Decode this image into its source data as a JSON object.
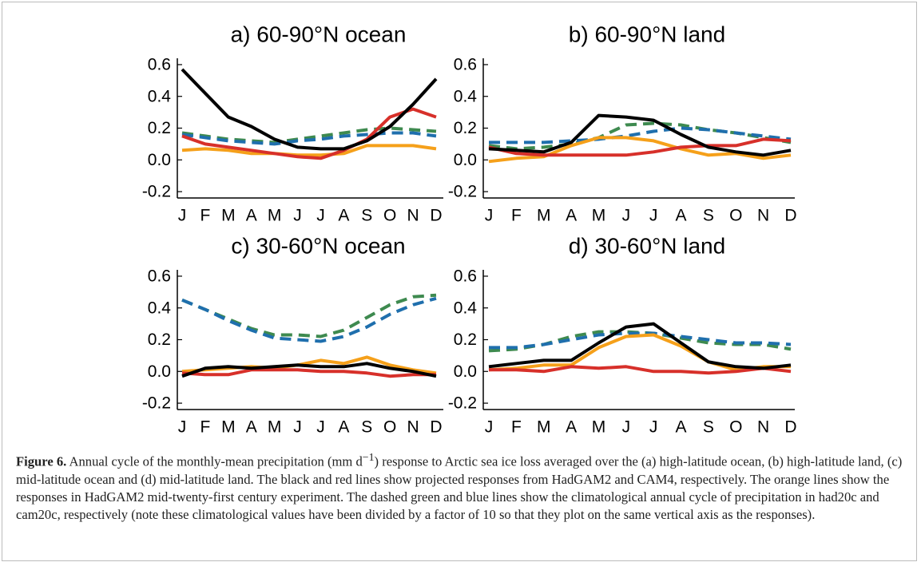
{
  "chart_data": [
    {
      "type": "line",
      "title": "a) 60-90°N ocean",
      "categories": [
        "J",
        "F",
        "M",
        "A",
        "M",
        "J",
        "J",
        "A",
        "S",
        "O",
        "N",
        "D"
      ],
      "ylim": [
        -0.24,
        0.64
      ],
      "yticks": [
        0.6,
        0.4,
        0.2,
        {
          "value": 0,
          "label": "0.0"
        },
        -0.2
      ],
      "series": [
        {
          "color": "#3e8a4f",
          "dashed": true,
          "values": [
            0.17,
            0.15,
            0.13,
            0.12,
            0.11,
            0.13,
            0.15,
            0.17,
            0.19,
            0.2,
            0.19,
            0.18
          ]
        },
        {
          "color": "#1f6fad",
          "dashed": true,
          "values": [
            0.16,
            0.14,
            0.12,
            0.11,
            0.1,
            0.12,
            0.13,
            0.15,
            0.16,
            0.17,
            0.17,
            0.15
          ]
        },
        {
          "color": "#f5a01a",
          "dashed": false,
          "values": [
            0.06,
            0.07,
            0.06,
            0.04,
            0.04,
            0.03,
            0.03,
            0.04,
            0.09,
            0.09,
            0.09,
            0.07
          ]
        },
        {
          "color": "#d7302a",
          "dashed": false,
          "values": [
            0.15,
            0.1,
            0.08,
            0.06,
            0.04,
            0.02,
            0.01,
            0.06,
            0.13,
            0.27,
            0.32,
            0.27
          ]
        },
        {
          "color": "#000000",
          "dashed": false,
          "values": [
            0.57,
            0.42,
            0.27,
            0.21,
            0.13,
            0.08,
            0.07,
            0.07,
            0.12,
            0.21,
            0.35,
            0.51
          ]
        }
      ]
    },
    {
      "type": "line",
      "title": "b) 60-90°N land",
      "categories": [
        "J",
        "F",
        "M",
        "A",
        "M",
        "J",
        "J",
        "A",
        "S",
        "O",
        "N",
        "D"
      ],
      "ylim": [
        -0.24,
        0.64
      ],
      "yticks": [
        0.6,
        0.4,
        0.2,
        {
          "value": 0,
          "label": "0.0"
        },
        -0.2
      ],
      "series": [
        {
          "color": "#3e8a4f",
          "dashed": true,
          "values": [
            0.09,
            0.07,
            0.08,
            0.1,
            0.14,
            0.22,
            0.23,
            0.22,
            0.19,
            0.17,
            0.14,
            0.11
          ]
        },
        {
          "color": "#1f6fad",
          "dashed": true,
          "values": [
            0.11,
            0.11,
            0.11,
            0.12,
            0.13,
            0.15,
            0.18,
            0.2,
            0.19,
            0.17,
            0.15,
            0.13
          ]
        },
        {
          "color": "#f5a01a",
          "dashed": false,
          "values": [
            -0.01,
            0.01,
            0.02,
            0.09,
            0.14,
            0.14,
            0.12,
            0.07,
            0.03,
            0.04,
            0.01,
            0.03
          ]
        },
        {
          "color": "#d7302a",
          "dashed": false,
          "values": [
            0.08,
            0.04,
            0.03,
            0.03,
            0.03,
            0.03,
            0.05,
            0.08,
            0.09,
            0.09,
            0.13,
            0.12
          ]
        },
        {
          "color": "#000000",
          "dashed": false,
          "values": [
            0.07,
            0.06,
            0.05,
            0.11,
            0.28,
            0.27,
            0.25,
            0.16,
            0.08,
            0.05,
            0.03,
            0.06
          ]
        }
      ]
    },
    {
      "type": "line",
      "title": "c) 30-60°N ocean",
      "categories": [
        "J",
        "F",
        "M",
        "A",
        "M",
        "J",
        "J",
        "A",
        "S",
        "O",
        "N",
        "D"
      ],
      "ylim": [
        -0.24,
        0.64
      ],
      "yticks": [
        0.6,
        0.4,
        0.2,
        {
          "value": 0,
          "label": "0.0"
        },
        -0.2
      ],
      "series": [
        {
          "color": "#3e8a4f",
          "dashed": true,
          "values": [
            0.45,
            0.39,
            0.33,
            0.27,
            0.23,
            0.23,
            0.22,
            0.26,
            0.34,
            0.42,
            0.47,
            0.48
          ]
        },
        {
          "color": "#1f6fad",
          "dashed": true,
          "values": [
            0.45,
            0.39,
            0.32,
            0.26,
            0.21,
            0.2,
            0.19,
            0.22,
            0.28,
            0.36,
            0.42,
            0.46
          ]
        },
        {
          "color": "#f5a01a",
          "dashed": false,
          "values": [
            0.0,
            0.01,
            0.02,
            0.03,
            0.02,
            0.04,
            0.07,
            0.05,
            0.09,
            0.04,
            0.01,
            -0.01
          ]
        },
        {
          "color": "#d7302a",
          "dashed": false,
          "values": [
            -0.01,
            -0.02,
            -0.02,
            0.01,
            0.01,
            0.01,
            0.0,
            0.0,
            -0.01,
            -0.03,
            -0.02,
            -0.02
          ]
        },
        {
          "color": "#000000",
          "dashed": false,
          "values": [
            -0.03,
            0.02,
            0.03,
            0.02,
            0.03,
            0.04,
            0.03,
            0.03,
            0.05,
            0.02,
            0.0,
            -0.03
          ]
        }
      ]
    },
    {
      "type": "line",
      "title": "d) 30-60°N land",
      "categories": [
        "J",
        "F",
        "M",
        "A",
        "M",
        "J",
        "J",
        "A",
        "S",
        "O",
        "N",
        "D"
      ],
      "ylim": [
        -0.24,
        0.64
      ],
      "yticks": [
        0.6,
        0.4,
        0.2,
        {
          "value": 0,
          "label": "0.0"
        },
        -0.2
      ],
      "series": [
        {
          "color": "#3e8a4f",
          "dashed": true,
          "values": [
            0.13,
            0.14,
            0.17,
            0.22,
            0.25,
            0.25,
            0.24,
            0.21,
            0.18,
            0.17,
            0.17,
            0.14
          ]
        },
        {
          "color": "#1f6fad",
          "dashed": true,
          "values": [
            0.15,
            0.15,
            0.17,
            0.2,
            0.23,
            0.24,
            0.24,
            0.22,
            0.2,
            0.18,
            0.18,
            0.17
          ]
        },
        {
          "color": "#f5a01a",
          "dashed": false,
          "values": [
            0.01,
            0.02,
            0.04,
            0.04,
            0.15,
            0.22,
            0.23,
            0.16,
            0.06,
            0.01,
            0.03,
            0.03
          ]
        },
        {
          "color": "#d7302a",
          "dashed": false,
          "values": [
            0.01,
            0.01,
            0.0,
            0.03,
            0.02,
            0.03,
            0.0,
            0.0,
            -0.01,
            0.0,
            0.02,
            0.0
          ]
        },
        {
          "color": "#000000",
          "dashed": false,
          "values": [
            0.03,
            0.05,
            0.07,
            0.07,
            0.18,
            0.28,
            0.3,
            0.18,
            0.06,
            0.03,
            0.02,
            0.04
          ]
        }
      ]
    }
  ],
  "caption": {
    "label": "Figure 6.",
    "text_1": " Annual cycle of the monthly-mean precipitation (mm d",
    "superscript": "−1",
    "text_2": ") response to Arctic sea ice loss averaged over the (a) high-latitude ocean, (b) high-latitude land, (c) mid-latitude ocean and (d) mid-latitude land. The black and red lines show projected responses from HadGAM2 and CAM4, respectively. The orange lines show the responses in HadGAM2 mid-twenty-first century experiment. The dashed green and blue lines show the climatological annual cycle of precipitation in had20c and cam20c, respectively (note these climatological values have been divided by a factor of 10 so that they plot on the same vertical axis as the responses)."
  }
}
